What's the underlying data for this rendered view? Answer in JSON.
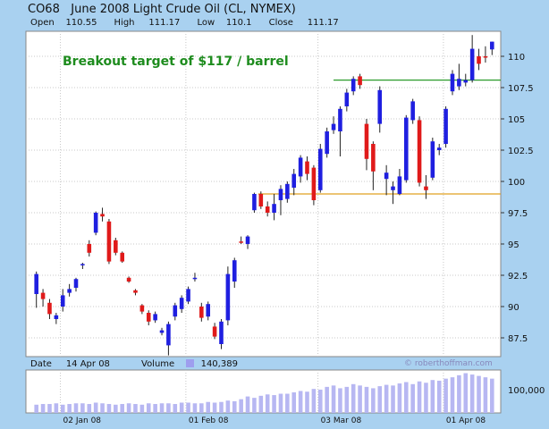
{
  "header": {
    "symbol": "CO68",
    "title": "June 2008 Light Crude Oil (CL, NYMEX)",
    "open_label": "Open",
    "open_value": "110.55",
    "high_label": "High",
    "high_value": "111.17",
    "low_label": "Low",
    "low_value": "110.1",
    "close_label": "Close",
    "close_value": "111.17"
  },
  "footer": {
    "date_label": "Date",
    "date_value": "14 Apr 08",
    "volume_label": "Volume",
    "volume_value": "140,389",
    "watermark": "© roberthoffman.com"
  },
  "colors": {
    "background": "#A9D1F0",
    "plot_bg": "#FFFFFF",
    "grid": "#C8C8C8",
    "up": "#1F1FE0",
    "down": "#E01A1A",
    "volume": "#B7B7F2",
    "resistance_line": "#2A9A2A",
    "support_line": "#E0A020",
    "annotation": "#1E8C1E"
  },
  "chart_data": {
    "type": "candlestick",
    "price_axis": {
      "ticks": [
        "87.5",
        "90",
        "92.5",
        "95",
        "97.5",
        "100",
        "102.5",
        "105",
        "107.5",
        "110"
      ],
      "ylim": [
        86,
        112
      ]
    },
    "volume_axis": {
      "ticks": [
        "100,000"
      ]
    },
    "x_ticks": [
      "02 Jan 08",
      "01 Feb 08",
      "03 Mar 08",
      "01 Apr 08"
    ],
    "annotation": "Breakout target of $117 / barrel",
    "lines": [
      {
        "name": "resistance",
        "y": 108.1
      },
      {
        "name": "support",
        "y": 99.0
      }
    ],
    "candles": [
      {
        "o": 91.0,
        "h": 92.8,
        "l": 89.9,
        "c": 92.6
      },
      {
        "o": 91.1,
        "h": 91.4,
        "l": 90.0,
        "c": 90.6
      },
      {
        "o": 90.3,
        "h": 90.6,
        "l": 89.0,
        "c": 89.4
      },
      {
        "o": 89.0,
        "h": 89.5,
        "l": 88.6,
        "c": 89.3
      },
      {
        "o": 90.0,
        "h": 91.4,
        "l": 89.6,
        "c": 90.9
      },
      {
        "o": 91.1,
        "h": 91.8,
        "l": 90.8,
        "c": 91.4
      },
      {
        "o": 91.5,
        "h": 92.3,
        "l": 91.2,
        "c": 92.2
      },
      {
        "o": 93.3,
        "h": 93.5,
        "l": 93.0,
        "c": 93.4
      },
      {
        "o": 95.0,
        "h": 95.3,
        "l": 94.0,
        "c": 94.3
      },
      {
        "o": 95.9,
        "h": 97.6,
        "l": 95.7,
        "c": 97.5
      },
      {
        "o": 97.4,
        "h": 97.9,
        "l": 96.8,
        "c": 97.2
      },
      {
        "o": 96.8,
        "h": 97.0,
        "l": 93.4,
        "c": 93.6
      },
      {
        "o": 95.3,
        "h": 95.5,
        "l": 94.1,
        "c": 94.3
      },
      {
        "o": 94.3,
        "h": 94.4,
        "l": 93.5,
        "c": 93.6
      },
      {
        "o": 92.3,
        "h": 92.4,
        "l": 91.9,
        "c": 92.0
      },
      {
        "o": 91.3,
        "h": 91.4,
        "l": 90.9,
        "c": 91.1
      },
      {
        "o": 90.1,
        "h": 90.2,
        "l": 89.4,
        "c": 89.6
      },
      {
        "o": 89.5,
        "h": 89.7,
        "l": 88.5,
        "c": 88.8
      },
      {
        "o": 88.9,
        "h": 89.6,
        "l": 88.7,
        "c": 89.4
      },
      {
        "o": 87.9,
        "h": 88.3,
        "l": 87.7,
        "c": 88.1
      },
      {
        "o": 86.9,
        "h": 88.8,
        "l": 86.1,
        "c": 88.6
      },
      {
        "o": 89.2,
        "h": 90.3,
        "l": 88.9,
        "c": 90.1
      },
      {
        "o": 89.8,
        "h": 90.9,
        "l": 89.5,
        "c": 90.7
      },
      {
        "o": 90.4,
        "h": 91.6,
        "l": 90.2,
        "c": 91.4
      },
      {
        "o": 92.3,
        "h": 92.7,
        "l": 92.0,
        "c": 92.3
      },
      {
        "o": 90.0,
        "h": 90.3,
        "l": 88.8,
        "c": 89.1
      },
      {
        "o": 89.2,
        "h": 90.4,
        "l": 88.9,
        "c": 90.2
      },
      {
        "o": 88.4,
        "h": 88.7,
        "l": 87.4,
        "c": 87.6
      },
      {
        "o": 87.0,
        "h": 89.0,
        "l": 86.6,
        "c": 88.8
      },
      {
        "o": 88.9,
        "h": 93.2,
        "l": 88.5,
        "c": 92.6
      },
      {
        "o": 92.0,
        "h": 93.9,
        "l": 91.5,
        "c": 93.7
      },
      {
        "o": 95.2,
        "h": 95.6,
        "l": 95.0,
        "c": 95.1
      },
      {
        "o": 95.0,
        "h": 95.7,
        "l": 94.6,
        "c": 95.6
      },
      {
        "o": 97.7,
        "h": 99.1,
        "l": 97.5,
        "c": 99.0
      },
      {
        "o": 99.0,
        "h": 99.2,
        "l": 97.8,
        "c": 98.0
      },
      {
        "o": 98.0,
        "h": 98.4,
        "l": 97.2,
        "c": 97.5
      },
      {
        "o": 97.5,
        "h": 99.0,
        "l": 96.9,
        "c": 98.2
      },
      {
        "o": 98.5,
        "h": 99.7,
        "l": 97.3,
        "c": 99.4
      },
      {
        "o": 98.6,
        "h": 100.0,
        "l": 98.3,
        "c": 99.8
      },
      {
        "o": 99.5,
        "h": 101.0,
        "l": 98.9,
        "c": 100.6
      },
      {
        "o": 100.4,
        "h": 102.1,
        "l": 99.9,
        "c": 101.9
      },
      {
        "o": 101.6,
        "h": 102.0,
        "l": 100.1,
        "c": 100.6
      },
      {
        "o": 101.1,
        "h": 101.3,
        "l": 98.1,
        "c": 98.5
      },
      {
        "o": 99.3,
        "h": 103.0,
        "l": 99.1,
        "c": 102.6
      },
      {
        "o": 102.2,
        "h": 104.3,
        "l": 101.9,
        "c": 104.0
      },
      {
        "o": 104.1,
        "h": 105.2,
        "l": 103.8,
        "c": 104.6
      },
      {
        "o": 104.0,
        "h": 106.0,
        "l": 102.0,
        "c": 105.8
      },
      {
        "o": 106.0,
        "h": 107.4,
        "l": 105.6,
        "c": 107.1
      },
      {
        "o": 107.2,
        "h": 108.4,
        "l": 106.9,
        "c": 108.2
      },
      {
        "o": 108.4,
        "h": 108.6,
        "l": 107.4,
        "c": 107.7
      },
      {
        "o": 104.6,
        "h": 105.0,
        "l": 100.9,
        "c": 101.8
      },
      {
        "o": 103.0,
        "h": 103.2,
        "l": 99.3,
        "c": 100.8
      },
      {
        "o": 104.6,
        "h": 107.6,
        "l": 103.9,
        "c": 107.3
      },
      {
        "o": 100.2,
        "h": 101.3,
        "l": 98.9,
        "c": 100.7
      },
      {
        "o": 99.3,
        "h": 100.0,
        "l": 98.2,
        "c": 99.6
      },
      {
        "o": 99.0,
        "h": 101.0,
        "l": 98.9,
        "c": 100.4
      },
      {
        "o": 100.1,
        "h": 105.3,
        "l": 99.9,
        "c": 105.1
      },
      {
        "o": 104.9,
        "h": 106.6,
        "l": 104.6,
        "c": 106.4
      },
      {
        "o": 104.9,
        "h": 105.2,
        "l": 99.6,
        "c": 99.9
      },
      {
        "o": 99.6,
        "h": 100.5,
        "l": 98.6,
        "c": 99.3
      },
      {
        "o": 100.3,
        "h": 103.5,
        "l": 100.1,
        "c": 103.2
      },
      {
        "o": 102.5,
        "h": 103.0,
        "l": 102.1,
        "c": 102.7
      },
      {
        "o": 103.0,
        "h": 106.0,
        "l": 102.7,
        "c": 105.8
      },
      {
        "o": 107.2,
        "h": 108.9,
        "l": 106.9,
        "c": 108.6
      },
      {
        "o": 107.6,
        "h": 109.4,
        "l": 107.3,
        "c": 108.2
      },
      {
        "o": 107.9,
        "h": 108.6,
        "l": 107.6,
        "c": 108.1
      },
      {
        "o": 108.1,
        "h": 111.7,
        "l": 107.9,
        "c": 110.6
      },
      {
        "o": 110.0,
        "h": 110.6,
        "l": 108.9,
        "c": 109.4
      },
      {
        "o": 110.0,
        "h": 110.8,
        "l": 109.5,
        "c": 109.9
      },
      {
        "o": 110.55,
        "h": 111.17,
        "l": 110.1,
        "c": 111.17
      }
    ],
    "volume": [
      12,
      13,
      13,
      14,
      12,
      13,
      14,
      14,
      13,
      15,
      14,
      13,
      12,
      13,
      14,
      13,
      12,
      14,
      13,
      14,
      14,
      13,
      15,
      15,
      14,
      14,
      16,
      15,
      16,
      18,
      17,
      20,
      24,
      22,
      25,
      27,
      26,
      28,
      28,
      30,
      32,
      31,
      35,
      34,
      38,
      40,
      36,
      38,
      42,
      40,
      38,
      36,
      39,
      41,
      40,
      43,
      45,
      42,
      46,
      44,
      48,
      47,
      50,
      52,
      55,
      58,
      56,
      54,
      52,
      50
    ]
  }
}
